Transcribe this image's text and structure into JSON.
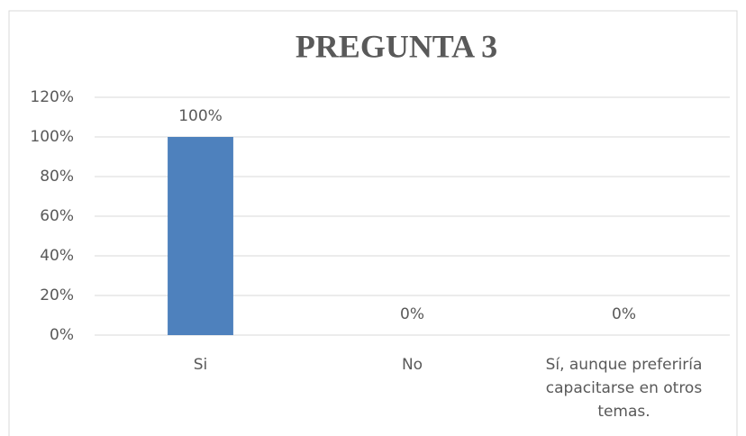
{
  "chart_data": {
    "type": "bar",
    "title": "PREGUNTA 3",
    "categories": [
      "Si",
      "No",
      "Sí, aunque preferiría capacitarse en otros temas."
    ],
    "values": [
      100,
      0,
      0
    ],
    "value_labels": [
      "100%",
      "0%",
      "0%"
    ],
    "color": "#4e81bd",
    "ylim": [
      0,
      120
    ],
    "yticks": [
      {
        "value": 0,
        "label": "0%"
      },
      {
        "value": 20,
        "label": "20%"
      },
      {
        "value": 40,
        "label": "40%"
      },
      {
        "value": 60,
        "label": "60%"
      },
      {
        "value": 80,
        "label": "80%"
      },
      {
        "value": 100,
        "label": "100%"
      },
      {
        "value": 120,
        "label": "120%"
      }
    ],
    "grid": true
  }
}
